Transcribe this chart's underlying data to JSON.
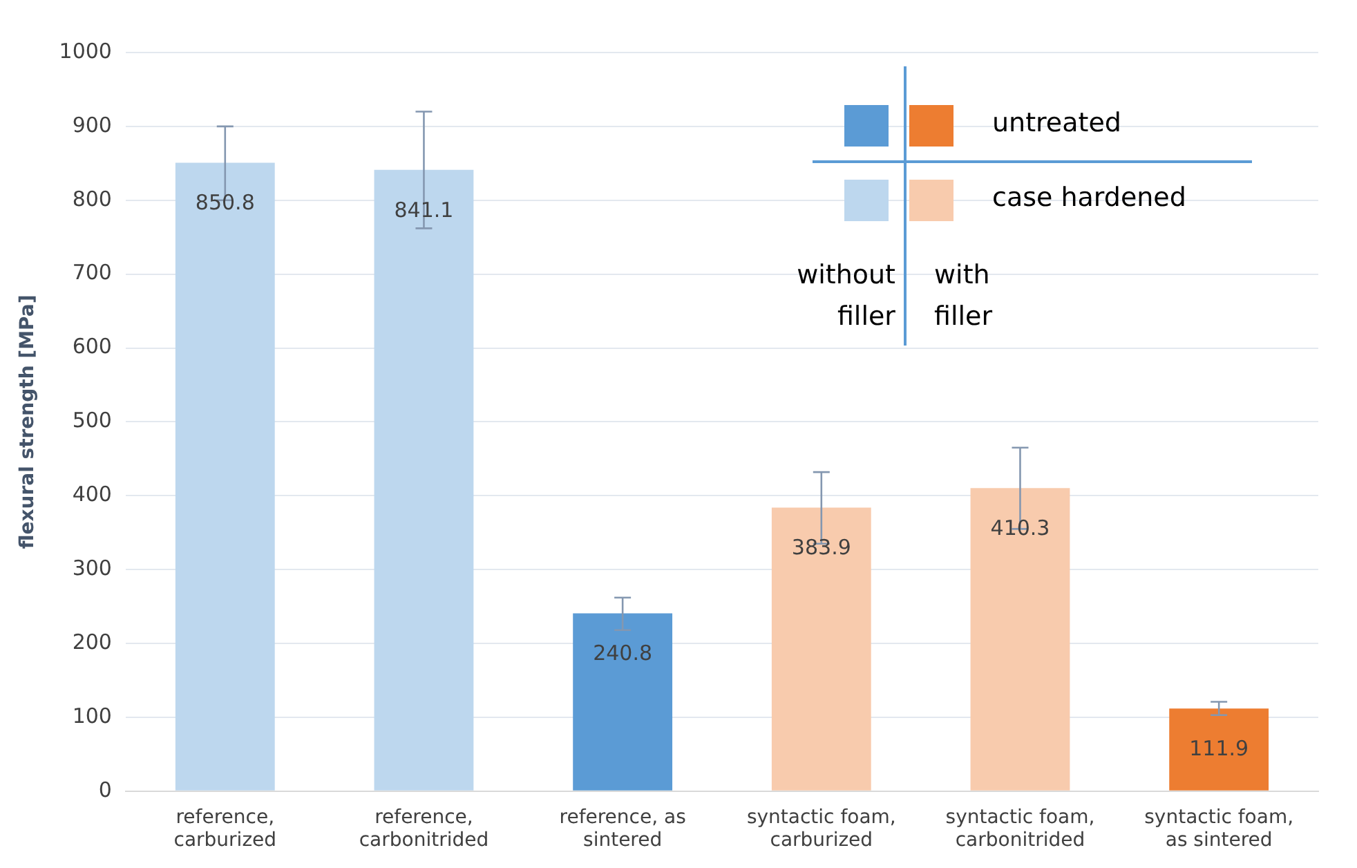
{
  "chart_data": {
    "type": "bar",
    "ylabel": "flexural strength [MPa]",
    "categories": [
      "reference,\ncarburized",
      "reference,\ncarbonitrided",
      "reference, as\nsintered",
      "syntactic foam,\ncarburized",
      "syntactic foam,\ncarbonitrided",
      "syntactic foam,\nas sintered"
    ],
    "values": [
      850.8,
      841.1,
      240.8,
      383.9,
      410.3,
      111.9
    ],
    "colors": [
      "#bdd7ee",
      "#bdd7ee",
      "#5b9bd5",
      "#f8cbad",
      "#f8cbad",
      "#ed7d31"
    ],
    "errors": [
      [
        800,
        900
      ],
      [
        762,
        920
      ],
      [
        218,
        262
      ],
      [
        335,
        432
      ],
      [
        355,
        465
      ],
      [
        103,
        121
      ]
    ],
    "ylim": [
      0,
      1000
    ],
    "yticks": [
      0,
      100,
      200,
      300,
      400,
      500,
      600,
      700,
      800,
      900,
      1000
    ],
    "grid": "y",
    "data_labels": true,
    "annotations": [
      "untreated",
      "case hardened",
      "without filler",
      "with filler"
    ]
  }
}
